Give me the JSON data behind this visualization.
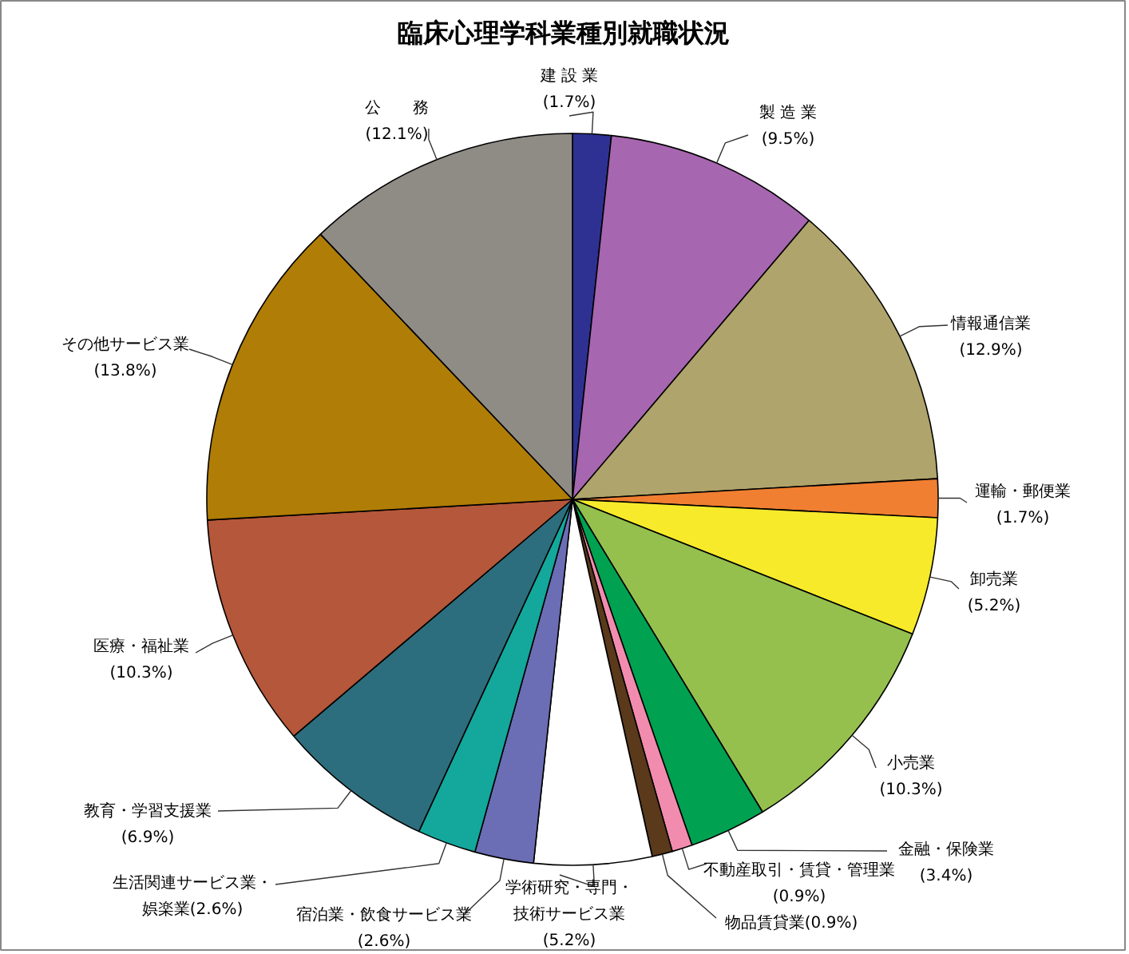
{
  "chart_data": {
    "type": "pie",
    "title": "臨床心理学科業種別就職状況",
    "categories": [
      "建 設 業",
      "製 造 業",
      "情報通信業",
      "運輸・郵便業",
      "卸売業",
      "小売業",
      "金融・保険業",
      "不動産取引・賃貸・管理業",
      "物品賃貸業",
      "学術研究・専門・技術サービス業",
      "宿泊業・飲食サービス業",
      "生活関連サービス業・娯楽業",
      "教育・学習支援業",
      "医療・福祉業",
      "その他サービス業",
      "公　　務"
    ],
    "values": [
      1.7,
      9.5,
      12.9,
      1.7,
      5.2,
      10.3,
      3.4,
      0.9,
      0.9,
      5.2,
      2.6,
      2.6,
      6.9,
      10.3,
      13.8,
      12.1
    ],
    "value_labels": [
      "(1.7%)",
      "(9.5%)",
      "(12.9%)",
      "(1.7%)",
      "(5.2%)",
      "(10.3%)",
      "(3.4%)",
      "(0.9%)",
      "(0.9%)",
      "(5.2%)",
      "(2.6%)",
      "(2.6%)",
      "(6.9%)",
      "(10.3%)",
      "(13.8%)",
      "(12.1%)"
    ],
    "colors": [
      "#2e3192",
      "#a766b0",
      "#afa46b",
      "#f07f31",
      "#f7ea2a",
      "#95c04d",
      "#00a251",
      "#f28cae",
      "#5a3a1a",
      "#ffffff",
      "#6b6db5",
      "#14a79c",
      "#2d6e7e",
      "#b5573a",
      "#b07d06",
      "#8f8c86"
    ]
  }
}
